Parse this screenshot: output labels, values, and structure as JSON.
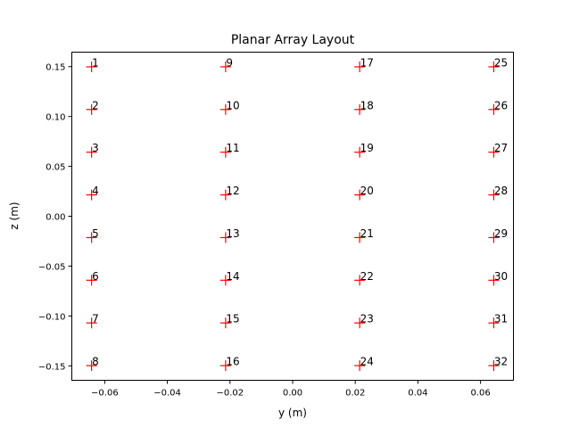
{
  "chart_data": {
    "type": "scatter",
    "title": "Planar Array Layout",
    "xlabel": "y (m)",
    "ylabel": "z (m)",
    "xlim": [
      -0.0705,
      0.0705
    ],
    "ylim": [
      -0.1645,
      0.1645
    ],
    "x_ticks": [
      -0.06,
      -0.04,
      -0.02,
      0.0,
      0.02,
      0.04,
      0.06
    ],
    "x_tick_labels": [
      "−0.06",
      "−0.04",
      "−0.02",
      "0.00",
      "0.02",
      "0.04",
      "0.06"
    ],
    "y_ticks": [
      0.15,
      0.1,
      0.05,
      0.0,
      -0.05,
      -0.1,
      -0.15
    ],
    "y_tick_labels": [
      "0.15",
      "0.10",
      "0.05",
      "0.00",
      "−0.05",
      "−0.10",
      "−0.15"
    ],
    "grid": false,
    "marker": "+",
    "marker_color": "#ff0000",
    "columns_y": [
      -0.0642,
      -0.0214,
      0.0214,
      0.0642
    ],
    "rows_z": [
      0.1498,
      0.107,
      0.0642,
      0.0214,
      -0.0214,
      -0.0642,
      -0.107,
      -0.1498
    ],
    "points": [
      {
        "label": "1",
        "y": -0.0642,
        "z": 0.1498
      },
      {
        "label": "2",
        "y": -0.0642,
        "z": 0.107
      },
      {
        "label": "3",
        "y": -0.0642,
        "z": 0.0642
      },
      {
        "label": "4",
        "y": -0.0642,
        "z": 0.0214
      },
      {
        "label": "5",
        "y": -0.0642,
        "z": -0.0214
      },
      {
        "label": "6",
        "y": -0.0642,
        "z": -0.0642
      },
      {
        "label": "7",
        "y": -0.0642,
        "z": -0.107
      },
      {
        "label": "8",
        "y": -0.0642,
        "z": -0.1498
      },
      {
        "label": "9",
        "y": -0.0214,
        "z": 0.1498
      },
      {
        "label": "10",
        "y": -0.0214,
        "z": 0.107
      },
      {
        "label": "11",
        "y": -0.0214,
        "z": 0.0642
      },
      {
        "label": "12",
        "y": -0.0214,
        "z": 0.0214
      },
      {
        "label": "13",
        "y": -0.0214,
        "z": -0.0214
      },
      {
        "label": "14",
        "y": -0.0214,
        "z": -0.0642
      },
      {
        "label": "15",
        "y": -0.0214,
        "z": -0.107
      },
      {
        "label": "16",
        "y": -0.0214,
        "z": -0.1498
      },
      {
        "label": "17",
        "y": 0.0214,
        "z": 0.1498
      },
      {
        "label": "18",
        "y": 0.0214,
        "z": 0.107
      },
      {
        "label": "19",
        "y": 0.0214,
        "z": 0.0642
      },
      {
        "label": "20",
        "y": 0.0214,
        "z": 0.0214
      },
      {
        "label": "21",
        "y": 0.0214,
        "z": -0.0214
      },
      {
        "label": "22",
        "y": 0.0214,
        "z": -0.0642
      },
      {
        "label": "23",
        "y": 0.0214,
        "z": -0.107
      },
      {
        "label": "24",
        "y": 0.0214,
        "z": -0.1498
      },
      {
        "label": "25",
        "y": 0.0642,
        "z": 0.1498
      },
      {
        "label": "26",
        "y": 0.0642,
        "z": 0.107
      },
      {
        "label": "27",
        "y": 0.0642,
        "z": 0.0642
      },
      {
        "label": "28",
        "y": 0.0642,
        "z": 0.0214
      },
      {
        "label": "29",
        "y": 0.0642,
        "z": -0.0214
      },
      {
        "label": "30",
        "y": 0.0642,
        "z": -0.0642
      },
      {
        "label": "31",
        "y": 0.0642,
        "z": -0.107
      },
      {
        "label": "32",
        "y": 0.0642,
        "z": -0.1498
      }
    ]
  }
}
